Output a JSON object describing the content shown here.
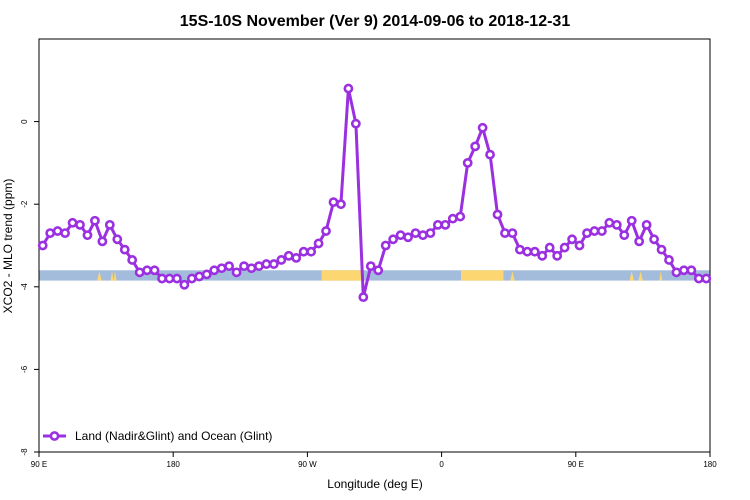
{
  "chart_data": {
    "type": "line",
    "title": "15S-10S November (Ver 9)   2014-09-06 to 2018-12-31",
    "xlabel": "Longitude (deg E)",
    "ylabel": "XCO2 - MLO trend (ppm)",
    "xlim": [
      90,
      540
    ],
    "ylim": [
      -8,
      2
    ],
    "x_ticks": [
      {
        "value": 90,
        "label": "90 E"
      },
      {
        "value": 180,
        "label": "180"
      },
      {
        "value": 270,
        "label": "90 W"
      },
      {
        "value": 360,
        "label": "0"
      },
      {
        "value": 450,
        "label": "90 E"
      },
      {
        "value": 540,
        "label": "180"
      }
    ],
    "y_ticks": [
      {
        "value": 0,
        "label": "0"
      },
      {
        "value": -2,
        "label": "-2"
      },
      {
        "value": -4,
        "label": "-4"
      },
      {
        "value": -6,
        "label": "-6"
      },
      {
        "value": -8,
        "label": "-8"
      }
    ],
    "grid": false,
    "legend_position": "bottom-left",
    "series": [
      {
        "name": "Land (Nadir&Glint) and Ocean (Glint)",
        "color": "#9b30e0",
        "x": [
          92.5,
          97.5,
          102.5,
          107.5,
          112.5,
          117.5,
          122.5,
          127.5,
          132.5,
          137.5,
          142.5,
          147.5,
          152.5,
          157.5,
          162.5,
          167.5,
          172.5,
          177.5,
          182.5,
          187.5,
          192.5,
          197.5,
          202.5,
          207.5,
          212.5,
          217.5,
          222.5,
          227.5,
          232.5,
          237.5,
          242.5,
          247.5,
          252.5,
          257.5,
          262.5,
          267.5,
          272.5,
          277.5,
          282.5,
          287.5,
          292.5,
          297.5,
          302.5,
          307.5,
          312.5,
          317.5,
          322.5,
          327.5,
          332.5,
          337.5,
          342.5,
          347.5,
          352.5,
          357.5,
          362.5,
          367.5,
          372.5,
          377.5,
          382.5,
          387.5,
          392.5,
          397.5,
          402.5,
          407.5,
          412.5,
          417.5,
          422.5,
          427.5,
          432.5,
          437.5,
          442.5,
          447.5,
          452.5,
          457.5,
          462.5,
          467.5,
          472.5,
          477.5,
          482.5,
          487.5,
          492.5,
          497.5,
          502.5,
          507.5,
          512.5,
          517.5,
          522.5,
          527.5,
          532.5,
          537.5
        ],
        "y": [
          -3.0,
          -2.7,
          -2.65,
          -2.7,
          -2.45,
          -2.5,
          -2.75,
          -2.4,
          -2.9,
          -2.5,
          -2.85,
          -3.1,
          -3.35,
          -3.65,
          -3.6,
          -3.6,
          -3.8,
          -3.8,
          -3.8,
          -3.95,
          -3.8,
          -3.75,
          -3.7,
          -3.6,
          -3.55,
          -3.5,
          -3.65,
          -3.5,
          -3.55,
          -3.5,
          -3.45,
          -3.45,
          -3.35,
          -3.25,
          -3.3,
          -3.15,
          -3.15,
          -2.95,
          -2.65,
          -1.95,
          -2.0,
          0.8,
          -0.05,
          -4.25,
          -3.5,
          -3.6,
          -3.0,
          -2.85,
          -2.75,
          -2.8,
          -2.7,
          -2.75,
          -2.7,
          -2.5,
          -2.5,
          -2.35,
          -2.3,
          -1.0,
          -0.6,
          -0.15,
          -0.8,
          -2.25,
          -2.7,
          -2.7,
          -3.1,
          -3.15,
          -3.15,
          -3.25,
          -3.05,
          -3.25,
          -3.05,
          -2.85,
          -3.0,
          -2.7,
          -2.65,
          -2.65,
          -2.45,
          -2.5,
          -2.75,
          -2.4,
          -2.9,
          -2.5,
          -2.85,
          -3.1,
          -3.35,
          -3.65,
          -3.6,
          -3.6,
          -3.8,
          -3.8
        ]
      }
    ],
    "land_ocean_band": {
      "y_range": [
        -3.85,
        -3.6
      ],
      "ocean_color": "#a4bcdc",
      "land_color": "#fcd670",
      "land_segments": [
        [
          279.5,
          306
        ],
        [
          373,
          401.5
        ]
      ],
      "land_spikes": [
        [
          129,
          132
        ],
        [
          138,
          140
        ],
        [
          140,
          142
        ],
        [
          406,
          409
        ],
        [
          486,
          489
        ],
        [
          492,
          495
        ],
        [
          506,
          508
        ]
      ]
    }
  }
}
